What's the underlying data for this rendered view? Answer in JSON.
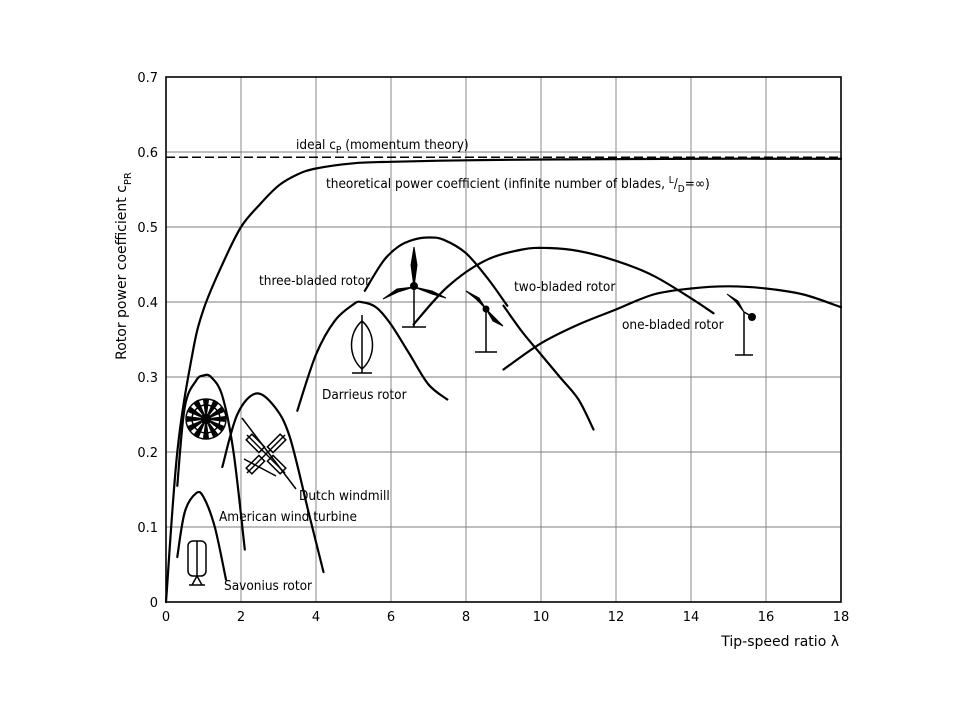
{
  "chart_data": {
    "type": "line",
    "title": "",
    "xlabel": "Tip-speed ratio λ",
    "ylabel": "Rotor power coefficient c",
    "ylabel_sub": "PR",
    "xlim": [
      0,
      18
    ],
    "ylim": [
      0,
      0.7
    ],
    "x_ticks": [
      0,
      2,
      4,
      6,
      8,
      10,
      12,
      14,
      16,
      18
    ],
    "y_ticks": [
      0,
      0.1,
      0.2,
      0.3,
      0.4,
      0.5,
      0.6,
      0.7
    ],
    "grid": true,
    "ideal": {
      "value": 0.593,
      "label_pre": "ideal c",
      "label_sub": "P",
      "label_post": " (momentum theory)"
    },
    "series": [
      {
        "name": "theoretical",
        "x": [
          0,
          0.3,
          0.7,
          1,
          1.5,
          2,
          2.5,
          3,
          3.5,
          4,
          5,
          6,
          8,
          10,
          14,
          18
        ],
        "y": [
          0,
          0.2,
          0.33,
          0.39,
          0.45,
          0.5,
          0.53,
          0.555,
          0.57,
          0.578,
          0.585,
          0.587,
          0.589,
          0.59,
          0.591,
          0.591
        ]
      },
      {
        "name": "Savonius rotor",
        "x": [
          0.3,
          0.5,
          0.8,
          1,
          1.3,
          1.6
        ],
        "y": [
          0.06,
          0.12,
          0.145,
          0.14,
          0.1,
          0.03
        ]
      },
      {
        "name": "American wind turbine",
        "x": [
          0.3,
          0.5,
          0.8,
          1,
          1.2,
          1.5,
          1.8,
          2.1
        ],
        "y": [
          0.155,
          0.26,
          0.295,
          0.302,
          0.3,
          0.275,
          0.2,
          0.07
        ]
      },
      {
        "name": "Dutch windmill",
        "x": [
          1.5,
          1.9,
          2.4,
          2.9,
          3.3,
          3.8,
          4.2
        ],
        "y": [
          0.18,
          0.25,
          0.278,
          0.26,
          0.22,
          0.12,
          0.04
        ]
      },
      {
        "name": "Darrieus rotor",
        "x": [
          3.5,
          4,
          4.5,
          5,
          5.2,
          5.6,
          6,
          6.5,
          7,
          7.5
        ],
        "y": [
          0.255,
          0.33,
          0.375,
          0.397,
          0.4,
          0.393,
          0.37,
          0.33,
          0.29,
          0.27
        ]
      },
      {
        "name": "three-bladed rotor",
        "x": [
          5.3,
          5.8,
          6.2,
          6.6,
          7,
          7.4,
          8,
          8.6,
          9.1
        ],
        "y": [
          0.415,
          0.455,
          0.474,
          0.483,
          0.486,
          0.483,
          0.465,
          0.43,
          0.395
        ]
      },
      {
        "name": "two-bladed rotor",
        "x": [
          6.6,
          7.5,
          8.5,
          9.5,
          10.2,
          11,
          12,
          13,
          14,
          14.6
        ],
        "y": [
          0.37,
          0.42,
          0.455,
          0.47,
          0.472,
          0.468,
          0.455,
          0.435,
          0.405,
          0.385
        ]
      },
      {
        "name": "Darrieus tail",
        "x": [
          9,
          9.5,
          10,
          10.5,
          11,
          11.4
        ],
        "y": [
          0.395,
          0.36,
          0.33,
          0.3,
          0.27,
          0.23
        ]
      },
      {
        "name": "one-bladed rotor",
        "x": [
          9,
          10,
          11,
          12,
          13,
          14,
          15,
          16,
          17,
          18
        ],
        "y": [
          0.31,
          0.345,
          0.37,
          0.39,
          0.41,
          0.418,
          0.421,
          0.418,
          0.41,
          0.393
        ]
      }
    ],
    "labels": {
      "theoretical_pre": "theoretical power coefficient (infinite number of blades, ",
      "ld_l": "L",
      "ld_d": "D",
      "ld_post": "=∞)",
      "three": "three-bladed rotor",
      "two": "two-bladed rotor",
      "one": "one-bladed rotor",
      "darrieus": "Darrieus rotor",
      "dutch": "Dutch windmill",
      "american": "American wind turbine",
      "savonius": "Savonius rotor"
    }
  }
}
